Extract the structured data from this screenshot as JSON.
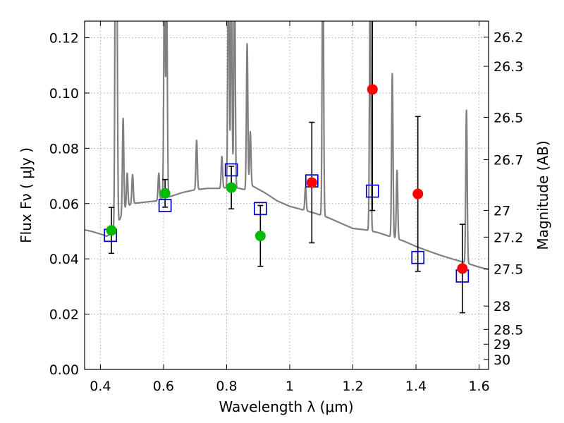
{
  "chart_data": {
    "type": "scatter",
    "title": "",
    "xlabel": "Wavelength  λ (μm)",
    "ylabel": "Flux  Fν  ( μJy )",
    "y2label": "Magnitude (AB)",
    "xlim": [
      0.35,
      1.63
    ],
    "ylim": [
      0.0,
      0.126
    ],
    "grid": true,
    "x_ticks": [
      {
        "v": 0.4,
        "label": "0.4"
      },
      {
        "v": 0.6,
        "label": "0.6"
      },
      {
        "v": 0.8,
        "label": "0.8"
      },
      {
        "v": 1.0,
        "label": "1"
      },
      {
        "v": 1.2,
        "label": "1.2"
      },
      {
        "v": 1.4,
        "label": "1.4"
      },
      {
        "v": 1.6,
        "label": "1.6"
      }
    ],
    "y_ticks": [
      {
        "v": 0.0,
        "label": "0.00"
      },
      {
        "v": 0.02,
        "label": "0.02"
      },
      {
        "v": 0.04,
        "label": "0.04"
      },
      {
        "v": 0.06,
        "label": "0.06"
      },
      {
        "v": 0.08,
        "label": "0.08"
      },
      {
        "v": 0.1,
        "label": "0.10"
      },
      {
        "v": 0.12,
        "label": "0.12"
      }
    ],
    "mag_ticks": [
      {
        "v": 26.2,
        "label": "26.2"
      },
      {
        "v": 26.3,
        "label": "26.3"
      },
      {
        "v": 26.5,
        "label": "26.5"
      },
      {
        "v": 26.7,
        "label": "26.7"
      },
      {
        "v": 27.0,
        "label": "27"
      },
      {
        "v": 27.2,
        "label": "27.2"
      },
      {
        "v": 27.5,
        "label": "27.5"
      },
      {
        "v": 28.0,
        "label": "28"
      },
      {
        "v": 28.5,
        "label": "28.5"
      },
      {
        "v": 29.0,
        "label": "29"
      },
      {
        "v": 30.0,
        "label": "30"
      }
    ],
    "colors": {
      "spectrum": "#808080",
      "model": "#0000cc",
      "optical": "#00bb00",
      "nir": "#ff0000",
      "errorbar": "#000000",
      "grid": "#aaaaaa"
    },
    "spectrum": {
      "continuum": [
        [
          0.35,
          0.0505
        ],
        [
          0.37,
          0.05
        ],
        [
          0.4,
          0.049
        ],
        [
          0.42,
          0.0482
        ],
        [
          0.44,
          0.0495
        ],
        [
          0.46,
          0.054
        ],
        [
          0.48,
          0.0585
        ],
        [
          0.5,
          0.06
        ],
        [
          0.54,
          0.0605
        ],
        [
          0.58,
          0.061
        ],
        [
          0.62,
          0.0625
        ],
        [
          0.66,
          0.064
        ],
        [
          0.7,
          0.065
        ],
        [
          0.74,
          0.0655
        ],
        [
          0.78,
          0.0655
        ],
        [
          0.82,
          0.066
        ],
        [
          0.86,
          0.065
        ],
        [
          0.88,
          0.0665
        ],
        [
          0.92,
          0.064
        ],
        [
          0.96,
          0.061
        ],
        [
          1.0,
          0.059
        ],
        [
          1.04,
          0.0578
        ],
        [
          1.08,
          0.0565
        ],
        [
          1.12,
          0.055
        ],
        [
          1.16,
          0.053
        ],
        [
          1.2,
          0.051
        ],
        [
          1.24,
          0.0505
        ],
        [
          1.28,
          0.0495
        ],
        [
          1.32,
          0.048
        ],
        [
          1.36,
          0.0465
        ],
        [
          1.4,
          0.0445
        ],
        [
          1.44,
          0.0428
        ],
        [
          1.48,
          0.0412
        ],
        [
          1.52,
          0.0398
        ],
        [
          1.56,
          0.0385
        ],
        [
          1.6,
          0.037
        ],
        [
          1.63,
          0.0362
        ]
      ],
      "lines": [
        [
          0.448,
          0.16
        ],
        [
          0.452,
          0.14
        ],
        [
          0.472,
          0.091
        ],
        [
          0.485,
          0.071
        ],
        [
          0.502,
          0.0705
        ],
        [
          0.585,
          0.071
        ],
        [
          0.603,
          0.145
        ],
        [
          0.61,
          0.135
        ],
        [
          0.705,
          0.083
        ],
        [
          0.785,
          0.077
        ],
        [
          0.806,
          0.16
        ],
        [
          0.815,
          0.14
        ],
        [
          0.825,
          0.15
        ],
        [
          0.865,
          0.118
        ],
        [
          0.875,
          0.086
        ],
        [
          1.05,
          0.066
        ],
        [
          1.105,
          0.16
        ],
        [
          1.255,
          0.145
        ],
        [
          1.325,
          0.107
        ],
        [
          1.34,
          0.072
        ],
        [
          1.56,
          0.094
        ]
      ]
    },
    "model_points": {
      "x": [
        0.432,
        0.605,
        0.815,
        0.907,
        1.07,
        1.262,
        1.406,
        1.547
      ],
      "y": [
        0.0485,
        0.0593,
        0.0722,
        0.0582,
        0.0682,
        0.0645,
        0.0405,
        0.0338
      ]
    },
    "optical_points": {
      "x": [
        0.435,
        0.605,
        0.815,
        0.907
      ],
      "y": [
        0.0503,
        0.0637,
        0.0658,
        0.0483
      ],
      "yerr": [
        0.0083,
        0.005,
        0.0077,
        0.011
      ]
    },
    "nir_points": {
      "x": [
        1.07,
        1.262,
        1.406,
        1.547
      ],
      "y": [
        0.0676,
        0.1013,
        0.0635,
        0.0365
      ],
      "yerr": [
        0.0218,
        0.0438,
        0.028,
        0.016
      ]
    }
  }
}
